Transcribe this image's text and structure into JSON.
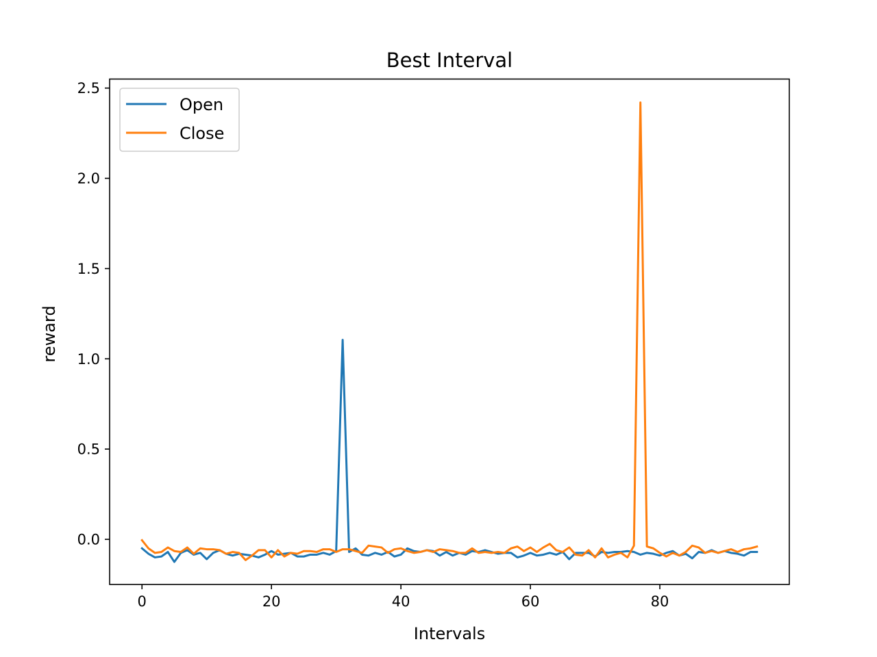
{
  "chart_data": {
    "type": "line",
    "title": "Best Interval",
    "xlabel": "Intervals",
    "ylabel": "reward",
    "xlim": [
      -5,
      100
    ],
    "ylim": [
      -0.25,
      2.55
    ],
    "xticks": [
      0,
      20,
      40,
      60,
      80
    ],
    "xtick_labels": [
      "0",
      "20",
      "40",
      "60",
      "80"
    ],
    "yticks": [
      0.0,
      0.5,
      1.0,
      1.5,
      2.0,
      2.5
    ],
    "ytick_labels": [
      "0.0",
      "0.5",
      "1.0",
      "1.5",
      "2.0",
      "2.5"
    ],
    "grid": false,
    "legend_position": "top-left",
    "x": [
      0,
      1,
      2,
      3,
      4,
      5,
      6,
      7,
      8,
      9,
      10,
      11,
      12,
      13,
      14,
      15,
      16,
      17,
      18,
      19,
      20,
      21,
      22,
      23,
      24,
      25,
      26,
      27,
      28,
      29,
      30,
      31,
      32,
      33,
      34,
      35,
      36,
      37,
      38,
      39,
      40,
      41,
      42,
      43,
      44,
      45,
      46,
      47,
      48,
      49,
      50,
      51,
      52,
      53,
      54,
      55,
      56,
      57,
      58,
      59,
      60,
      61,
      62,
      63,
      64,
      65,
      66,
      67,
      68,
      69,
      70,
      71,
      72,
      73,
      74,
      75,
      76,
      77,
      78,
      79,
      80,
      81,
      82,
      83,
      84,
      85,
      86,
      87,
      88,
      89,
      90,
      91,
      92,
      93,
      94,
      95
    ],
    "series": [
      {
        "name": "Open",
        "color": "#1f77b4",
        "values": [
          -0.05,
          -0.08,
          -0.1,
          -0.095,
          -0.07,
          -0.125,
          -0.075,
          -0.06,
          -0.085,
          -0.075,
          -0.11,
          -0.075,
          -0.06,
          -0.08,
          -0.09,
          -0.08,
          -0.085,
          -0.09,
          -0.1,
          -0.085,
          -0.065,
          -0.085,
          -0.08,
          -0.075,
          -0.095,
          -0.095,
          -0.085,
          -0.085,
          -0.075,
          -0.085,
          -0.065,
          1.105,
          -0.07,
          -0.05,
          -0.085,
          -0.09,
          -0.075,
          -0.085,
          -0.07,
          -0.095,
          -0.085,
          -0.05,
          -0.065,
          -0.07,
          -0.06,
          -0.065,
          -0.09,
          -0.07,
          -0.09,
          -0.075,
          -0.085,
          -0.065,
          -0.07,
          -0.06,
          -0.07,
          -0.08,
          -0.075,
          -0.075,
          -0.1,
          -0.09,
          -0.075,
          -0.09,
          -0.085,
          -0.075,
          -0.085,
          -0.07,
          -0.11,
          -0.075,
          -0.075,
          -0.075,
          -0.095,
          -0.07,
          -0.075,
          -0.07,
          -0.07,
          -0.065,
          -0.07,
          -0.085,
          -0.075,
          -0.08,
          -0.09,
          -0.075,
          -0.065,
          -0.09,
          -0.08,
          -0.105,
          -0.07,
          -0.075,
          -0.06,
          -0.075,
          -0.065,
          -0.075,
          -0.08,
          -0.09,
          -0.07,
          -0.07
        ]
      },
      {
        "name": "Close",
        "color": "#ff7f0e",
        "values": [
          -0.005,
          -0.05,
          -0.075,
          -0.07,
          -0.045,
          -0.065,
          -0.07,
          -0.045,
          -0.08,
          -0.05,
          -0.055,
          -0.055,
          -0.06,
          -0.08,
          -0.07,
          -0.075,
          -0.115,
          -0.09,
          -0.06,
          -0.06,
          -0.1,
          -0.06,
          -0.095,
          -0.075,
          -0.08,
          -0.065,
          -0.065,
          -0.07,
          -0.055,
          -0.055,
          -0.07,
          -0.055,
          -0.055,
          -0.065,
          -0.075,
          -0.035,
          -0.04,
          -0.045,
          -0.075,
          -0.055,
          -0.05,
          -0.065,
          -0.075,
          -0.07,
          -0.06,
          -0.07,
          -0.055,
          -0.06,
          -0.065,
          -0.075,
          -0.075,
          -0.05,
          -0.075,
          -0.07,
          -0.075,
          -0.07,
          -0.075,
          -0.05,
          -0.04,
          -0.065,
          -0.045,
          -0.07,
          -0.045,
          -0.025,
          -0.06,
          -0.07,
          -0.045,
          -0.085,
          -0.09,
          -0.06,
          -0.1,
          -0.05,
          -0.1,
          -0.085,
          -0.075,
          -0.1,
          -0.035,
          2.42,
          -0.04,
          -0.05,
          -0.075,
          -0.095,
          -0.075,
          -0.09,
          -0.07,
          -0.035,
          -0.045,
          -0.075,
          -0.065,
          -0.075,
          -0.065,
          -0.055,
          -0.07,
          -0.055,
          -0.05,
          -0.04
        ]
      }
    ]
  }
}
